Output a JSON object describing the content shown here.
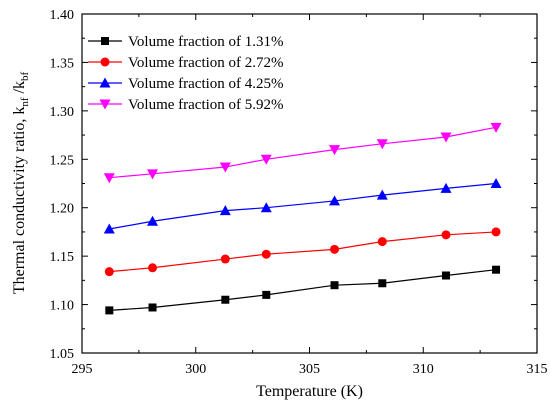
{
  "chart_data": {
    "type": "line",
    "xlabel": "Temperature (K)",
    "ylabel_main": "Thermal conductivity ratio, k",
    "ylabel_sub1": "nf",
    "ylabel_sep": " /k",
    "ylabel_sub2": "bf",
    "xlim": [
      295,
      315
    ],
    "ylim": [
      1.05,
      1.4
    ],
    "x_ticks": [
      295,
      300,
      305,
      310,
      315
    ],
    "x_tick_labels": [
      "295",
      "300",
      "305",
      "310",
      "315"
    ],
    "y_ticks": [
      1.05,
      1.1,
      1.15,
      1.2,
      1.25,
      1.3,
      1.35,
      1.4
    ],
    "y_tick_labels": [
      "1.05",
      "1.10",
      "1.15",
      "1.20",
      "1.25",
      "1.30",
      "1.35",
      "1.40"
    ],
    "x": [
      296.2,
      298.1,
      301.3,
      303.1,
      306.1,
      308.2,
      311.0,
      313.2
    ],
    "legend_position": "top-left",
    "grid": false,
    "series": [
      {
        "name": "Volume fraction of 1.31%",
        "color": "#000000",
        "marker": "square",
        "values": [
          1.094,
          1.097,
          1.105,
          1.11,
          1.12,
          1.122,
          1.13,
          1.136
        ]
      },
      {
        "name": "Volume fraction of 2.72%",
        "color": "#ff0000",
        "marker": "circle",
        "values": [
          1.134,
          1.138,
          1.147,
          1.152,
          1.157,
          1.165,
          1.172,
          1.175
        ]
      },
      {
        "name": "Volume fraction of 4.25%",
        "color": "#0000ff",
        "marker": "triangle-up",
        "values": [
          1.178,
          1.186,
          1.197,
          1.2,
          1.207,
          1.213,
          1.22,
          1.225
        ]
      },
      {
        "name": "Volume fraction of 5.92%",
        "color": "#ff00ff",
        "marker": "triangle-down",
        "values": [
          1.231,
          1.235,
          1.242,
          1.25,
          1.26,
          1.266,
          1.273,
          1.283
        ]
      }
    ]
  }
}
